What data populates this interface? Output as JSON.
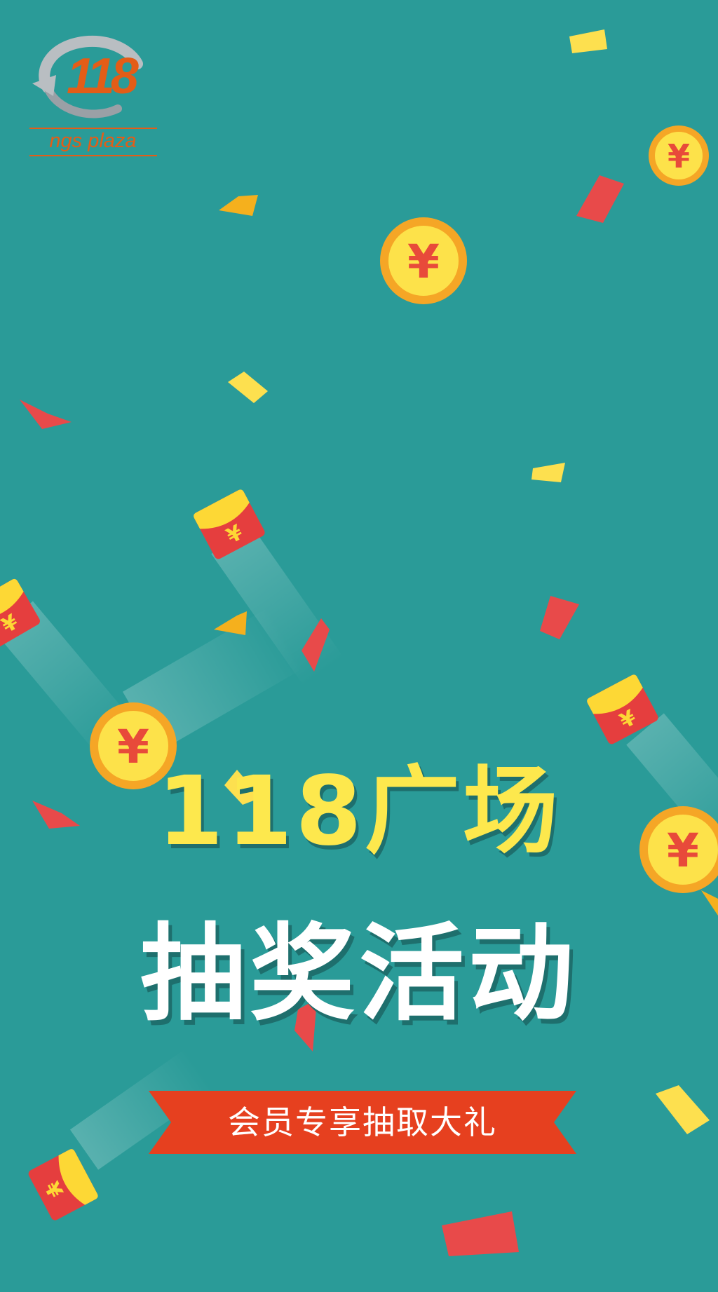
{
  "logo": {
    "number": "118",
    "tagline": "ngs plaza",
    "accent": "#e35d17",
    "silver": "#b9bec2"
  },
  "hero": {
    "title_line1": "118广场",
    "title_line2": "抽奖活动",
    "subtitle": "会员专享抽取大礼"
  },
  "colors": {
    "background": "#2a9b98",
    "yellow": "#fde84d",
    "coin_rim": "#f5a626",
    "coin_face": "#fde24a",
    "red": "#e84a4a",
    "ribbon": "#e6401f"
  },
  "decor": {
    "currency_symbol": "¥"
  }
}
